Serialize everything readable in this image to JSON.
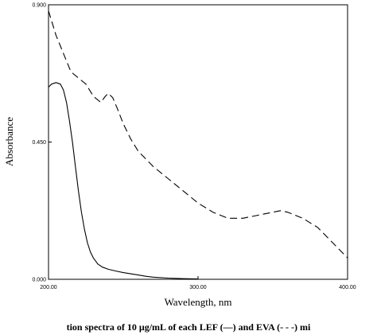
{
  "chart_data": {
    "type": "line",
    "title": "",
    "xlabel": "Wavelength,  nm",
    "ylabel": "Absorbance",
    "xlim": [
      200,
      400
    ],
    "ylim": [
      0,
      0.9
    ],
    "x_ticks": [
      {
        "value": 200,
        "label": "200.00"
      },
      {
        "value": 300,
        "label": "300.00"
      },
      {
        "value": 400,
        "label": "400.00"
      }
    ],
    "y_ticks": [
      {
        "value": 0,
        "label": "0.000"
      },
      {
        "value": 0.45,
        "label": "0.450"
      },
      {
        "value": 0.9,
        "label": "0.900"
      }
    ],
    "grid": false,
    "series": [
      {
        "style": "solid",
        "color": "#000000",
        "x": [
          200,
          202,
          205,
          208,
          210,
          212,
          214,
          216,
          218,
          220,
          222,
          224,
          226,
          228,
          230,
          233,
          236,
          240,
          245,
          250,
          255,
          260,
          265,
          270,
          280,
          290,
          300
        ],
        "y": [
          0.63,
          0.64,
          0.645,
          0.64,
          0.62,
          0.58,
          0.52,
          0.45,
          0.37,
          0.29,
          0.22,
          0.165,
          0.12,
          0.09,
          0.07,
          0.05,
          0.04,
          0.033,
          0.027,
          0.022,
          0.018,
          0.014,
          0.01,
          0.007,
          0.004,
          0.002,
          0.001
        ]
      },
      {
        "style": "dashed",
        "color": "#000000",
        "x": [
          200,
          205,
          210,
          215,
          220,
          225,
          230,
          235,
          238,
          240,
          243,
          246,
          250,
          255,
          260,
          270,
          280,
          290,
          300,
          310,
          320,
          330,
          340,
          350,
          355,
          360,
          370,
          380,
          390,
          400
        ],
        "y": [
          0.88,
          0.8,
          0.74,
          0.68,
          0.66,
          0.64,
          0.6,
          0.58,
          0.6,
          0.61,
          0.595,
          0.56,
          0.51,
          0.46,
          0.42,
          0.37,
          0.33,
          0.29,
          0.25,
          0.22,
          0.2,
          0.2,
          0.21,
          0.22,
          0.225,
          0.22,
          0.2,
          0.17,
          0.12,
          0.07
        ]
      }
    ]
  },
  "caption": "tion spectra of 10 μg/mL of each LEF (—) and EVA (- - -) mi"
}
